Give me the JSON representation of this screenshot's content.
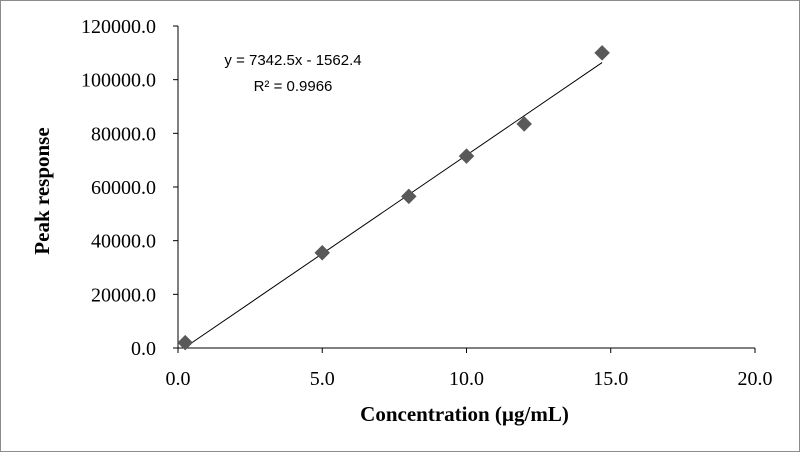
{
  "chart_data": {
    "type": "scatter",
    "xlabel": "Concentration  (µg/mL)",
    "ylabel": "Peak response",
    "xlim": [
      0,
      20
    ],
    "ylim": [
      0,
      120000
    ],
    "x_ticks": [
      "0.0",
      "5.0",
      "10.0",
      "15.0",
      "20.0"
    ],
    "y_ticks": [
      "0.0",
      "20000.0",
      "40000.0",
      "60000.0",
      "80000.0",
      "100000.0",
      "120000.0"
    ],
    "grid": false,
    "legend": "none",
    "marker": "diamond",
    "marker_color": "#595959",
    "series": [
      {
        "x": [
          0.25,
          5.0,
          8.0,
          10.0,
          12.0,
          14.7
        ],
        "y": [
          2000,
          35500,
          56500,
          71500,
          83500,
          110000
        ]
      }
    ],
    "trendline": {
      "slope": 7342.5,
      "intercept": -1562.4,
      "x_range": [
        0.25,
        14.7
      ],
      "equation_label": "y = 7342.5x - 1562.4",
      "r2_label": "R² = 0.9966"
    }
  }
}
